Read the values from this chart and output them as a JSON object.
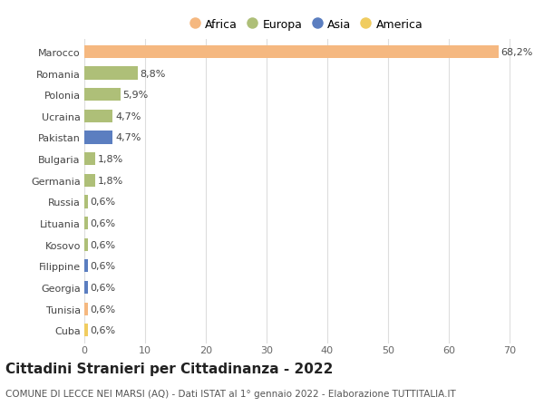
{
  "countries": [
    "Marocco",
    "Romania",
    "Polonia",
    "Ucraina",
    "Pakistan",
    "Bulgaria",
    "Germania",
    "Russia",
    "Lituania",
    "Kosovo",
    "Filippine",
    "Georgia",
    "Tunisia",
    "Cuba"
  ],
  "values": [
    68.2,
    8.8,
    5.9,
    4.7,
    4.7,
    1.8,
    1.8,
    0.6,
    0.6,
    0.6,
    0.6,
    0.6,
    0.6,
    0.6
  ],
  "labels": [
    "68,2%",
    "8,8%",
    "5,9%",
    "4,7%",
    "4,7%",
    "1,8%",
    "1,8%",
    "0,6%",
    "0,6%",
    "0,6%",
    "0,6%",
    "0,6%",
    "0,6%",
    "0,6%"
  ],
  "continents": [
    "Africa",
    "Europa",
    "Europa",
    "Europa",
    "Asia",
    "Europa",
    "Europa",
    "Europa",
    "Europa",
    "Europa",
    "Asia",
    "Asia",
    "Africa",
    "America"
  ],
  "continent_colors": {
    "Africa": "#F5B880",
    "Europa": "#AEBF78",
    "Asia": "#5B7EC0",
    "America": "#F0CC60"
  },
  "legend_order": [
    "Africa",
    "Europa",
    "Asia",
    "America"
  ],
  "xlim": [
    0,
    73
  ],
  "xticks": [
    0,
    10,
    20,
    30,
    40,
    50,
    60,
    70
  ],
  "title": "Cittadini Stranieri per Cittadinanza - 2022",
  "subtitle": "COMUNE DI LECCE NEI MARSI (AQ) - Dati ISTAT al 1° gennaio 2022 - Elaborazione TUTTITALIA.IT",
  "bg_color": "#ffffff",
  "grid_color": "#dddddd",
  "bar_height": 0.6,
  "label_fontsize": 8,
  "tick_fontsize": 8,
  "title_fontsize": 11,
  "subtitle_fontsize": 7.5
}
